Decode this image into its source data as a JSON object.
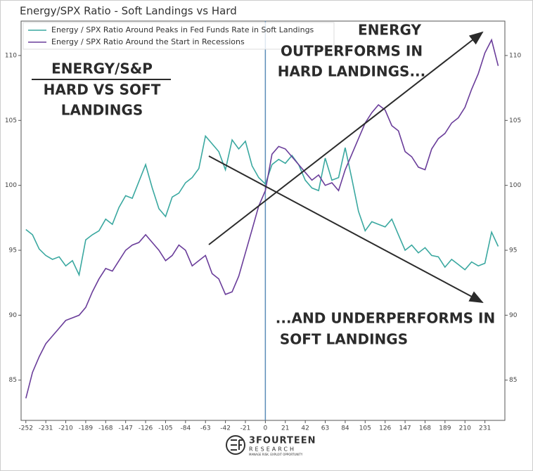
{
  "chart_data": {
    "type": "line",
    "title": "Energy/SPX Ratio - Soft Landings vs Hard",
    "x": [
      -252,
      -245,
      -238,
      -231,
      -224,
      -217,
      -210,
      -203,
      -196,
      -189,
      -182,
      -175,
      -168,
      -161,
      -154,
      -147,
      -140,
      -133,
      -126,
      -119,
      -112,
      -105,
      -98,
      -91,
      -84,
      -77,
      -70,
      -63,
      -56,
      -49,
      -42,
      -35,
      -28,
      -21,
      -14,
      -7,
      0,
      7,
      14,
      21,
      28,
      35,
      42,
      49,
      56,
      63,
      70,
      77,
      84,
      91,
      98,
      105,
      112,
      119,
      126,
      133,
      140,
      147,
      154,
      161,
      168,
      175,
      182,
      189,
      196,
      203,
      210,
      217,
      224,
      231,
      238,
      245
    ],
    "series": [
      {
        "name": "Energy / SPX Ratio Around Peaks in Fed Funds Rate in Soft Landings",
        "color": "#3aa8a0",
        "values": [
          96.6,
          96.2,
          95.1,
          94.6,
          94.3,
          94.5,
          93.8,
          94.2,
          93.1,
          95.8,
          96.2,
          96.5,
          97.4,
          97.0,
          98.3,
          99.2,
          99.0,
          100.3,
          101.6,
          99.8,
          98.2,
          97.6,
          99.1,
          99.4,
          100.2,
          100.6,
          101.3,
          103.8,
          103.2,
          102.6,
          101.2,
          103.5,
          102.8,
          103.4,
          101.5,
          100.6,
          100.1,
          101.6,
          102.0,
          101.7,
          102.3,
          101.6,
          100.4,
          99.8,
          99.6,
          102.1,
          100.4,
          100.6,
          102.9,
          100.5,
          98.0,
          96.5,
          97.2,
          97.0,
          96.8,
          97.4,
          96.2,
          95.0,
          95.4,
          94.8,
          95.2,
          94.6,
          94.5,
          93.7,
          94.3,
          93.9,
          93.5,
          94.1,
          93.8,
          94.0,
          96.4,
          95.3
        ]
      },
      {
        "name": "Energy / SPX Ratio Around the Start in Recessions",
        "color": "#6a3d9a",
        "values": [
          83.6,
          85.6,
          86.8,
          87.8,
          88.4,
          89.0,
          89.6,
          89.8,
          90.0,
          90.6,
          91.8,
          92.8,
          93.6,
          93.4,
          94.2,
          95.0,
          95.4,
          95.6,
          96.2,
          95.6,
          95.0,
          94.2,
          94.6,
          95.4,
          95.0,
          93.8,
          94.2,
          94.6,
          93.2,
          92.8,
          91.6,
          91.8,
          93.0,
          94.8,
          96.6,
          98.4,
          99.6,
          102.4,
          103.0,
          102.8,
          102.2,
          101.6,
          101.0,
          100.4,
          100.8,
          100.0,
          100.2,
          99.6,
          101.2,
          102.4,
          103.6,
          104.8,
          105.6,
          106.2,
          105.8,
          104.6,
          104.2,
          102.6,
          102.2,
          101.4,
          101.2,
          102.8,
          103.6,
          104.0,
          104.8,
          105.2,
          106.0,
          107.4,
          108.6,
          110.2,
          111.2,
          109.2
        ]
      }
    ],
    "xlim": [
      -257,
      252
    ],
    "xticks": [
      -252,
      -231,
      -210,
      -189,
      -168,
      -147,
      -126,
      -105,
      -84,
      -63,
      -42,
      -21,
      0,
      21,
      42,
      63,
      84,
      105,
      126,
      147,
      168,
      189,
      210,
      231
    ],
    "ylim": [
      81.9,
      112.65
    ],
    "yticks": [
      85,
      90,
      95,
      100,
      105,
      110
    ],
    "vline": 0,
    "vline_color": "#5b8db8",
    "annotations": [
      "ENERGY/S&P",
      "HARD VS SOFT",
      "LANDINGS",
      "ENERGY",
      "OUTPERFORMS IN",
      "HARD LANDINGS...",
      "...AND UNDERPERFORMS IN",
      "SOFT LANDINGS"
    ]
  },
  "logo": {
    "name": "3FOURTEEN",
    "sub": "RESEARCH",
    "tagline": "MANAGE RISK. EXPLOIT OPPORTUNITY"
  }
}
